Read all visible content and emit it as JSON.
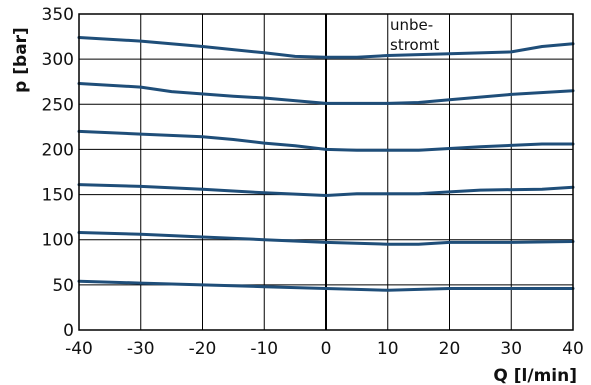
{
  "chart_data": {
    "type": "line",
    "title": "",
    "xlabel": "Q [l/min]",
    "ylabel": "p [bar]",
    "xlim": [
      -40,
      40
    ],
    "ylim": [
      0,
      350
    ],
    "xticks": [
      -40,
      -30,
      -20,
      -10,
      0,
      10,
      20,
      30,
      40
    ],
    "yticks": [
      0,
      50,
      100,
      150,
      200,
      250,
      300,
      350
    ],
    "grid": true,
    "line_color": "#1f4e79",
    "annotation": {
      "line1": "unbe-",
      "line2": "stromt"
    },
    "series": [
      {
        "x": [
          -40,
          -30,
          -20,
          -10,
          -5,
          0,
          5,
          10,
          20,
          30,
          35,
          40
        ],
        "y": [
          324,
          320,
          314,
          307,
          303,
          302,
          302,
          304,
          306,
          308,
          314,
          317
        ]
      },
      {
        "x": [
          -40,
          -30,
          -25,
          -15,
          -10,
          0,
          10,
          15,
          20,
          30,
          40
        ],
        "y": [
          273,
          269,
          264,
          259,
          257,
          251,
          251,
          252,
          255,
          261,
          265
        ]
      },
      {
        "x": [
          -40,
          -30,
          -20,
          -15,
          -10,
          -5,
          0,
          5,
          15,
          20,
          25,
          35,
          40
        ],
        "y": [
          220,
          217,
          214,
          211,
          207,
          204,
          200,
          199,
          199,
          201,
          203,
          206,
          206
        ]
      },
      {
        "x": [
          -40,
          -30,
          -20,
          -10,
          0,
          5,
          15,
          20,
          25,
          35,
          40
        ],
        "y": [
          161,
          159,
          156,
          152,
          149,
          151,
          151,
          153,
          155,
          156,
          158
        ]
      },
      {
        "x": [
          -40,
          -30,
          -20,
          -10,
          0,
          10,
          15,
          20,
          30,
          40
        ],
        "y": [
          108,
          106,
          103,
          100,
          97,
          95,
          95,
          97,
          97,
          98
        ]
      },
      {
        "x": [
          -40,
          -30,
          -20,
          -10,
          0,
          5,
          10,
          20,
          30,
          40
        ],
        "y": [
          54,
          52,
          50,
          48,
          46,
          45,
          44,
          46,
          46,
          46
        ]
      }
    ]
  }
}
